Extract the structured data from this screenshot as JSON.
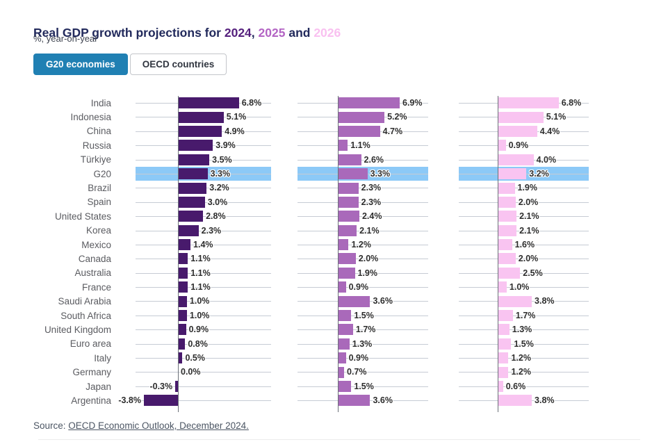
{
  "page": {
    "title": {
      "text": "Real GDP growth projections for ",
      "year_2024": "2024",
      "comma": ", ",
      "year_2025": "2025",
      "and_word": " and ",
      "year_2026": "2026"
    },
    "subtitle": "%, year-on-year",
    "tabs": [
      {
        "label": "G20 economies",
        "active": true
      },
      {
        "label": "OECD countries",
        "active": false
      }
    ],
    "source_prefix": "Source: ",
    "source_link": "OECD Economic Outlook, December 2024."
  },
  "colors": {
    "title_text": "#222a5c",
    "title_year_2024": "#55207d",
    "title_year_2025": "#b364c4",
    "title_year_2026": "#f9c0f0",
    "bar_2024": "#481a6c",
    "bar_2025": "#a969ba",
    "bar_2026": "#f9c4f1",
    "highlight_band": "#8cc9f7",
    "active_tab": "#2080b3",
    "gridline": "#c6cbd4",
    "axis_line": "#6b7178"
  },
  "chart_data": {
    "type": "bar",
    "orientation": "horizontal",
    "title": "Real GDP growth projections for 2024, 2025 and 2026",
    "subtitle": "%, year-on-year",
    "value_suffix": "%",
    "grid": true,
    "legend_position": "none",
    "xlim_per_panel": [
      -4.7,
      10.4
    ],
    "highlight_category": "G20",
    "categories": [
      "India",
      "Indonesia",
      "China",
      "Russia",
      "Türkiye",
      "G20",
      "Brazil",
      "Spain",
      "United States",
      "Korea",
      "Mexico",
      "Canada",
      "Australia",
      "France",
      "Saudi Arabia",
      "South Africa",
      "United Kingdom",
      "Euro area",
      "Italy",
      "Germany",
      "Japan",
      "Argentina"
    ],
    "series": [
      {
        "name": "2024",
        "color": "#481a6c",
        "values": [
          6.8,
          5.1,
          4.9,
          3.9,
          3.5,
          3.3,
          3.2,
          3.0,
          2.8,
          2.3,
          1.4,
          1.1,
          1.1,
          1.1,
          1.0,
          1.0,
          0.9,
          0.8,
          0.5,
          0.0,
          -0.3,
          -3.8
        ]
      },
      {
        "name": "2025",
        "color": "#a969ba",
        "values": [
          6.9,
          5.2,
          4.7,
          1.1,
          2.6,
          3.3,
          2.3,
          2.3,
          2.4,
          2.1,
          1.2,
          2.0,
          1.9,
          0.9,
          3.6,
          1.5,
          1.7,
          1.3,
          0.9,
          0.7,
          1.5,
          3.6
        ]
      },
      {
        "name": "2026",
        "color": "#f9c4f1",
        "values": [
          6.8,
          5.1,
          4.4,
          0.9,
          4.0,
          3.2,
          1.9,
          2.0,
          2.1,
          2.1,
          1.6,
          2.0,
          2.5,
          1.0,
          3.8,
          1.7,
          1.3,
          1.5,
          1.2,
          1.2,
          0.6,
          3.8
        ]
      }
    ]
  }
}
